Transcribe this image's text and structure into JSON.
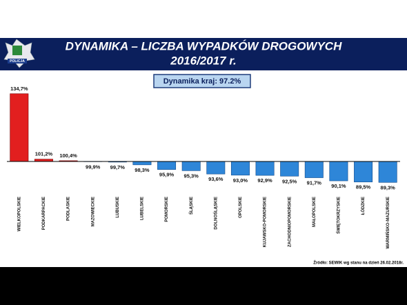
{
  "logo_text": "POLICJA",
  "chart_data": {
    "type": "bar",
    "title": [
      "DYNAMIKA – LICZBA WYPADKÓW DROGOWYCH",
      "2016/2017 r."
    ],
    "annotation": "Dynamika kraj: 97.2%",
    "source": "Źródło: SEWIK wg stanu na dzień 26.02.2018r.",
    "categories": [
      "WIELKOPOLSKIE",
      "PODKARPACKIE",
      "PODLASKIE",
      "MAZOWIECKIE",
      "LUBUSKIE",
      "LUBELSKIE",
      "POMORSKIE",
      "ŚLĄSKIE",
      "DOLNOŚLĄSKIE",
      "OPOLSKIE",
      "KUJAWSKO-POMORSKIE",
      "ZACHODNIOPOMORSKIE",
      "MAŁOPOLSKIE",
      "ŚWIĘTOKRZYSKIE",
      "ŁÓDZKIE",
      "WARMIŃSKO-MAZURSKIE"
    ],
    "values": [
      134.7,
      101.2,
      100.4,
      99.9,
      99.7,
      98.3,
      95.9,
      95.3,
      93.6,
      93.0,
      92.9,
      92.5,
      91.7,
      90.1,
      89.5,
      89.3
    ],
    "value_labels": [
      "134,7%",
      "101,2%",
      "100,4%",
      "99,9%",
      "99,7%",
      "98,3%",
      "95,9%",
      "95,3%",
      "93,6%",
      "93,0%",
      "92,9%",
      "92,5%",
      "91,7%",
      "90,1%",
      "89,5%",
      "89,3%"
    ],
    "baseline": 100,
    "color_above": "#e21f1f",
    "color_below": "#2e86d8",
    "ylim": [
      85,
      140
    ]
  }
}
